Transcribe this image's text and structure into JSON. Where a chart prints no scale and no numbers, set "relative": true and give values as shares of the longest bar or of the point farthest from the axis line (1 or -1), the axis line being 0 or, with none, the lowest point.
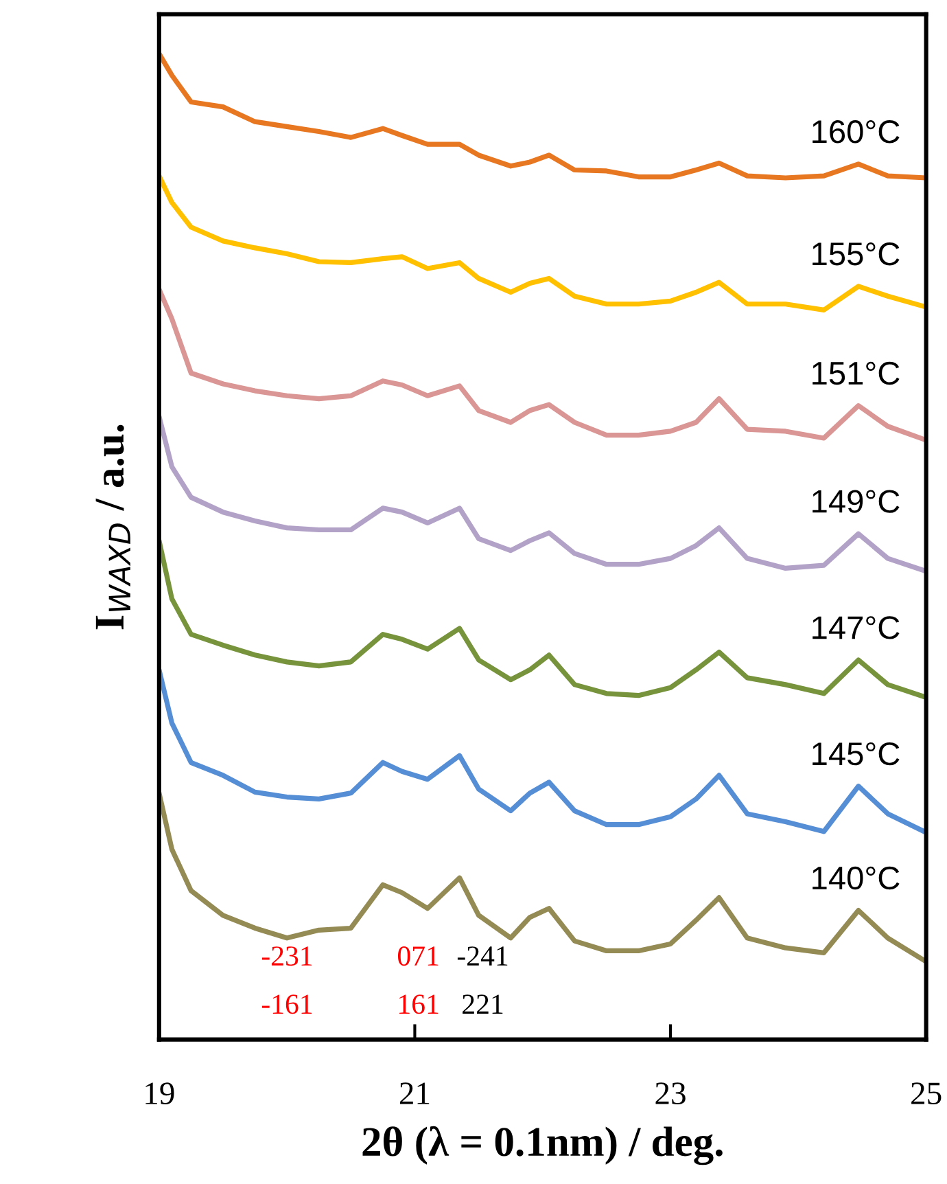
{
  "chart_data": {
    "type": "line",
    "relative": true,
    "xlabel": "2θ (λ = 0.1nm) / deg.",
    "ylabel": "I$_{WAXD}$ / a.u.",
    "xlim": [
      19,
      25
    ],
    "xticks": [
      19,
      21,
      23,
      25
    ],
    "grid": false,
    "legend": false,
    "marker": "none",
    "line_style": "solid",
    "tick_labels": "x",
    "x": [
      19,
      19.1,
      19.25,
      19.5,
      19.75,
      20.0,
      20.25,
      20.5,
      20.75,
      20.9,
      21.1,
      21.35,
      21.5,
      21.75,
      21.9,
      22.05,
      22.25,
      22.5,
      22.75,
      23.0,
      23.2,
      23.38,
      23.6,
      23.9,
      24.2,
      24.47,
      24.7,
      25.0
    ],
    "series": [
      {
        "name": "160°C",
        "color": "#e87722",
        "values": [
          1.0,
          0.978,
          0.951,
          0.946,
          0.931,
          0.926,
          0.921,
          0.915,
          0.924,
          0.917,
          0.908,
          0.908,
          0.897,
          0.886,
          0.89,
          0.897,
          0.882,
          0.881,
          0.875,
          0.875,
          0.882,
          0.889,
          0.876,
          0.874,
          0.876,
          0.888,
          0.876,
          0.874
        ]
      },
      {
        "name": "155°C",
        "color": "#ffc000",
        "values": [
          0.876,
          0.849,
          0.824,
          0.81,
          0.803,
          0.797,
          0.789,
          0.788,
          0.792,
          0.794,
          0.782,
          0.788,
          0.772,
          0.758,
          0.767,
          0.772,
          0.754,
          0.746,
          0.746,
          0.749,
          0.758,
          0.768,
          0.746,
          0.746,
          0.74,
          0.764,
          0.754,
          0.743
        ]
      },
      {
        "name": "151°C",
        "color": "#d99694",
        "values": [
          0.761,
          0.731,
          0.676,
          0.665,
          0.658,
          0.653,
          0.65,
          0.653,
          0.668,
          0.664,
          0.653,
          0.663,
          0.638,
          0.626,
          0.638,
          0.644,
          0.626,
          0.613,
          0.613,
          0.617,
          0.626,
          0.65,
          0.619,
          0.617,
          0.61,
          0.643,
          0.622,
          0.608
        ]
      },
      {
        "name": "149°C",
        "color": "#b3a2c7",
        "values": [
          0.632,
          0.581,
          0.55,
          0.535,
          0.526,
          0.519,
          0.517,
          0.517,
          0.539,
          0.535,
          0.524,
          0.539,
          0.508,
          0.496,
          0.506,
          0.514,
          0.493,
          0.482,
          0.482,
          0.488,
          0.501,
          0.519,
          0.488,
          0.478,
          0.481,
          0.513,
          0.488,
          0.475
        ]
      },
      {
        "name": "147°C",
        "color": "#77933c",
        "values": [
          0.506,
          0.447,
          0.411,
          0.4,
          0.39,
          0.383,
          0.379,
          0.383,
          0.411,
          0.406,
          0.396,
          0.417,
          0.385,
          0.365,
          0.375,
          0.39,
          0.36,
          0.351,
          0.349,
          0.357,
          0.375,
          0.393,
          0.367,
          0.36,
          0.351,
          0.385,
          0.36,
          0.347
        ]
      },
      {
        "name": "145°C",
        "color": "#558ed5",
        "values": [
          0.375,
          0.321,
          0.281,
          0.268,
          0.251,
          0.246,
          0.244,
          0.25,
          0.281,
          0.272,
          0.264,
          0.288,
          0.254,
          0.232,
          0.25,
          0.261,
          0.232,
          0.218,
          0.218,
          0.226,
          0.244,
          0.268,
          0.229,
          0.221,
          0.211,
          0.257,
          0.229,
          0.21
        ]
      },
      {
        "name": "140°C",
        "color": "#948a54",
        "values": [
          0.25,
          0.193,
          0.151,
          0.126,
          0.113,
          0.103,
          0.111,
          0.113,
          0.157,
          0.149,
          0.133,
          0.164,
          0.126,
          0.103,
          0.124,
          0.133,
          0.1,
          0.09,
          0.09,
          0.097,
          0.121,
          0.144,
          0.103,
          0.093,
          0.088,
          0.131,
          0.103,
          0.079
        ]
      }
    ],
    "annotations": [
      "-231",
      "071",
      "-241",
      "-161",
      "161",
      "221"
    ]
  }
}
